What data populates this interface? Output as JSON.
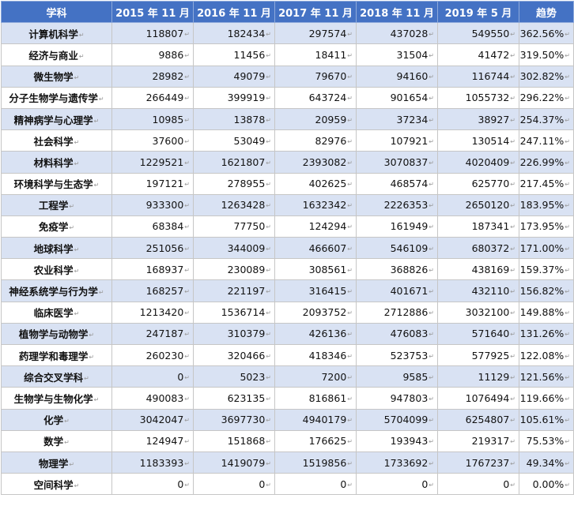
{
  "table": {
    "headers": [
      "学科",
      "2015 年 11 月",
      "2016 年 11 月",
      "2017 年 11 月",
      "2018 年 11 月",
      "2019 年 5 月",
      "趋势"
    ],
    "cell_mark": "↵",
    "rows": [
      [
        "计算机科学",
        "118807",
        "182434",
        "297574",
        "437028",
        "549550",
        "362.56%"
      ],
      [
        "经济与商业",
        "9886",
        "11456",
        "18411",
        "31504",
        "41472",
        "319.50%"
      ],
      [
        "微生物学",
        "28982",
        "49079",
        "79670",
        "94160",
        "116744",
        "302.82%"
      ],
      [
        "分子生物学与遗传学",
        "266449",
        "399919",
        "643724",
        "901654",
        "1055732",
        "296.22%"
      ],
      [
        "精神病学与心理学",
        "10985",
        "13878",
        "20959",
        "37234",
        "38927",
        "254.37%"
      ],
      [
        "社会科学",
        "37600",
        "53049",
        "82976",
        "107921",
        "130514",
        "247.11%"
      ],
      [
        "材料科学",
        "1229521",
        "1621807",
        "2393082",
        "3070837",
        "4020409",
        "226.99%"
      ],
      [
        "环境科学与生态学",
        "197121",
        "278955",
        "402625",
        "468574",
        "625770",
        "217.45%"
      ],
      [
        "工程学",
        "933300",
        "1263428",
        "1632342",
        "2226353",
        "2650120",
        "183.95%"
      ],
      [
        "免疫学",
        "68384",
        "77750",
        "124294",
        "161949",
        "187341",
        "173.95%"
      ],
      [
        "地球科学",
        "251056",
        "344009",
        "466607",
        "546109",
        "680372",
        "171.00%"
      ],
      [
        "农业科学",
        "168937",
        "230089",
        "308561",
        "368826",
        "438169",
        "159.37%"
      ],
      [
        "神经系统学与行为学",
        "168257",
        "221197",
        "316415",
        "401671",
        "432110",
        "156.82%"
      ],
      [
        "临床医学",
        "1213420",
        "1536714",
        "2093752",
        "2712886",
        "3032100",
        "149.88%"
      ],
      [
        "植物学与动物学",
        "247187",
        "310379",
        "426136",
        "476083",
        "571640",
        "131.26%"
      ],
      [
        "药理学和毒理学",
        "260230",
        "320466",
        "418346",
        "523753",
        "577925",
        "122.08%"
      ],
      [
        "综合交叉学科",
        "0",
        "5023",
        "7200",
        "9585",
        "11129",
        "121.56%"
      ],
      [
        "生物学与生物化学",
        "490083",
        "623135",
        "816861",
        "947803",
        "1076494",
        "119.66%"
      ],
      [
        "化学",
        "3042047",
        "3697730",
        "4940179",
        "5704099",
        "6254807",
        "105.61%"
      ],
      [
        "数学",
        "124947",
        "151868",
        "176625",
        "193943",
        "219317",
        "75.53%"
      ],
      [
        "物理学",
        "1183393",
        "1419079",
        "1519856",
        "1733692",
        "1767237",
        "49.34%"
      ],
      [
        "空间科学",
        "0",
        "0",
        "0",
        "0",
        "0",
        "0.00%"
      ]
    ]
  }
}
